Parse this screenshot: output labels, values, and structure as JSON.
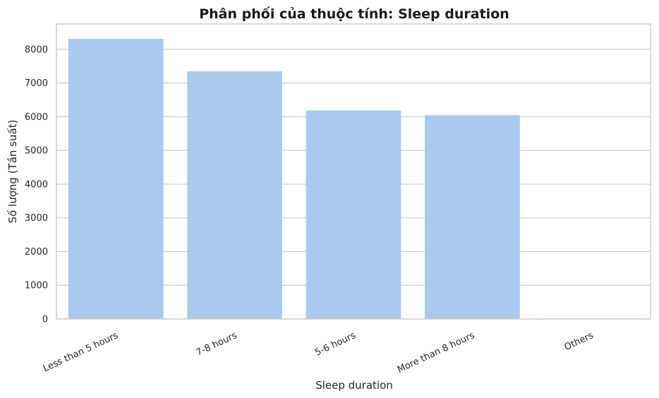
{
  "chart_data": {
    "type": "bar",
    "title": "Phân phối của thuộc tính: Sleep duration",
    "xlabel": "Sleep duration",
    "ylabel": "Số lượng (Tần suất)",
    "categories": [
      "Less than 5 hours",
      "7-8 hours",
      "5-6 hours",
      "More than 8 hours",
      "Others"
    ],
    "values": [
      8310,
      7346,
      6183,
      6044,
      12
    ],
    "ylim": [
      0,
      8750
    ],
    "yticks": [
      0,
      1000,
      2000,
      3000,
      4000,
      5000,
      6000,
      7000,
      8000
    ],
    "grid": true,
    "legend": "none",
    "colors": {
      "bar": "#aac9ee",
      "grid": "#cccccc",
      "text": "#262626"
    }
  }
}
